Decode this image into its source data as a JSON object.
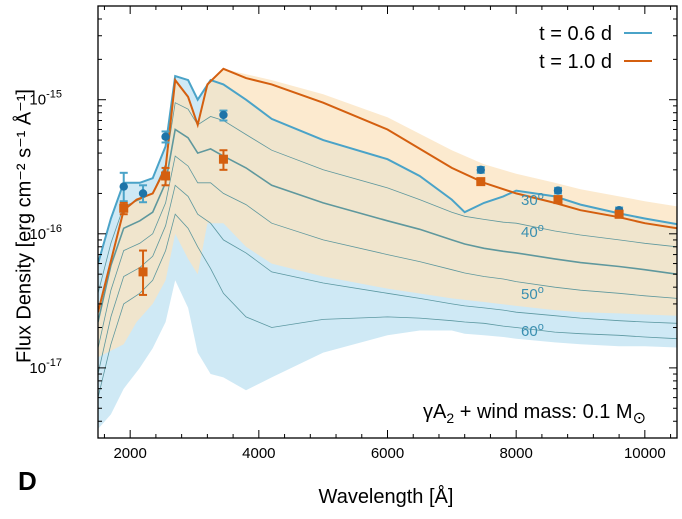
{
  "chart_data": {
    "type": "line",
    "xlabel": "Wavelength [Å]",
    "ylabel": "Flux Density [erg cm⁻² s⁻¹ Å⁻¹]",
    "xlim": [
      1500,
      10500
    ],
    "ylim": [
      3e-18,
      5e-15
    ],
    "yscale": "log",
    "xticks": [
      2000,
      4000,
      6000,
      8000,
      10000
    ],
    "yticks": [
      {
        "value": 1e-17,
        "mant": "10",
        "exp": "-17"
      },
      {
        "value": 1e-16,
        "mant": "10",
        "exp": "-16"
      },
      {
        "value": 1e-15,
        "mant": "10",
        "exp": "-15"
      }
    ],
    "panel_label": "D",
    "annotation": {
      "prefix": "γA",
      "sub": "2",
      "middle": " + wind mass: 0.1 M",
      "symbol": "⊙"
    },
    "angle_labels": [
      {
        "text": "30",
        "x": 8000,
        "y": 1.7e-16
      },
      {
        "text": "40",
        "x": 8000,
        "y": 1.1e-16
      },
      {
        "text": "50",
        "x": 8000,
        "y": 4.2e-17
      },
      {
        "text": "60",
        "x": 8000,
        "y": 2.2e-17
      }
    ],
    "series": [
      {
        "name": "t = 0.6 d",
        "color": "#4aa3c8",
        "light_color": "#cfe9f5",
        "x": [
          1500,
          1700,
          1900,
          2150,
          2350,
          2550,
          2700,
          2900,
          3050,
          3250,
          3450,
          3800,
          4200,
          5000,
          6000,
          6500,
          7000,
          7200,
          7500,
          7800,
          8000,
          8600,
          9000,
          9600,
          10000,
          10500
        ],
        "y": [
          6e-17,
          1.3e-16,
          2.4e-16,
          2.4e-16,
          2.6e-16,
          4.5e-16,
          1.5e-15,
          1.4e-15,
          1e-15,
          1.4e-15,
          1.3e-15,
          1e-15,
          7.2e-16,
          5e-16,
          3.6e-16,
          2.7e-16,
          1.8e-16,
          1.45e-16,
          1.7e-16,
          1.9e-16,
          2.1e-16,
          1.9e-16,
          1.65e-16,
          1.42e-16,
          1.3e-16,
          1.18e-16
        ],
        "band_upper": [
          6e-17,
          1.3e-16,
          2.4e-16,
          2.4e-16,
          2.6e-16,
          4.5e-16,
          1.5e-15,
          1.4e-15,
          1e-15,
          1.4e-15,
          1.3e-15,
          1e-15,
          7.2e-16,
          5e-16,
          3.6e-16,
          2.7e-16,
          1.8e-16,
          1.45e-16,
          1.7e-16,
          1.9e-16,
          2.1e-16,
          1.9e-16,
          1.65e-16,
          1.42e-16,
          1.3e-16,
          1.18e-16
        ],
        "band_lower": [
          3.5e-18,
          4.5e-18,
          7e-18,
          1e-17,
          1.4e-17,
          2.2e-17,
          4.5e-17,
          2.8e-17,
          1.3e-17,
          9e-18,
          8.5e-18,
          6.8e-18,
          8.5e-18,
          1.3e-17,
          1.75e-17,
          1.9e-17,
          1.9e-17,
          1.8e-17,
          1.75e-17,
          1.7e-17,
          1.65e-17,
          1.55e-17,
          1.5e-17,
          1.45e-17,
          1.45e-17,
          1.42e-17
        ],
        "contours": [
          [
            3.6e-17,
            8.5e-17,
            1.6e-16,
            1.8e-16,
            2e-16,
            3.3e-16,
            9.5e-16,
            8.5e-16,
            6.5e-16,
            7.5e-16,
            7e-16,
            5.5e-16,
            4.2e-16,
            3e-16,
            2.2e-16,
            1.8e-16,
            1.45e-16,
            1.35e-16,
            1.28e-16,
            1.22e-16,
            1.2e-16,
            1.05e-16,
            9.8e-17,
            9e-17,
            8.5e-17,
            8e-17
          ],
          [
            2.2e-17,
            5.8e-17,
            1.1e-16,
            1.25e-16,
            1.45e-16,
            2.4e-16,
            6e-16,
            5.2e-16,
            4e-16,
            4.3e-16,
            3.8e-16,
            3.1e-16,
            2.3e-16,
            1.7e-16,
            1.25e-16,
            1.08e-16,
            9e-17,
            8.4e-17,
            7.8e-17,
            7.4e-17,
            7.2e-17,
            6.5e-17,
            6.1e-17,
            5.7e-17,
            5.4e-17,
            5e-17
          ],
          [
            1.4e-17,
            3.8e-17,
            7.5e-17,
            8.5e-17,
            1e-16,
            1.7e-16,
            3.8e-16,
            3.2e-16,
            2.4e-16,
            2.4e-16,
            2e-16,
            1.65e-16,
            1.2e-16,
            9e-17,
            7e-17,
            6.2e-17,
            5.4e-17,
            5.1e-17,
            4.8e-17,
            4.6e-17,
            4.4e-17,
            4e-17,
            3.8e-17,
            3.6e-17,
            3.45e-17,
            3.3e-17
          ],
          [
            9e-18,
            2.4e-17,
            4.8e-17,
            5.6e-17,
            6.8e-17,
            1.15e-16,
            2.3e-16,
            1.9e-16,
            1.4e-16,
            1.2e-16,
            9e-17,
            7.2e-17,
            5.2e-17,
            4.3e-17,
            3.6e-17,
            3.3e-17,
            3e-17,
            2.9e-17,
            2.8e-17,
            2.7e-17,
            2.6e-17,
            2.45e-17,
            2.35e-17,
            2.25e-17,
            2.2e-17,
            2.15e-17
          ],
          [
            6e-18,
            1.5e-17,
            3e-17,
            3.6e-17,
            4.5e-17,
            7.5e-17,
            1.4e-16,
            1.1e-16,
            8e-17,
            5.5e-17,
            3.6e-17,
            2.4e-17,
            2e-17,
            2.3e-17,
            2.4e-17,
            2.35e-17,
            2.25e-17,
            2.2e-17,
            2.15e-17,
            2.05e-17,
            2e-17,
            1.85e-17,
            1.8e-17,
            1.75e-17,
            1.7e-17,
            1.65e-17
          ]
        ],
        "points": [
          {
            "x": 1900,
            "y": 2.25e-16,
            "lo": 1.75e-16,
            "hi": 2.85e-16
          },
          {
            "x": 2200,
            "y": 2e-16,
            "lo": 1.72e-16,
            "hi": 2.3e-16
          },
          {
            "x": 2550,
            "y": 5.3e-16,
            "lo": 4.8e-16,
            "hi": 5.8e-16
          },
          {
            "x": 3450,
            "y": 7.7e-16,
            "lo": 7e-16,
            "hi": 8.3e-16
          },
          {
            "x": 7450,
            "y": 3e-16,
            "lo": 2.85e-16,
            "hi": 3.15e-16
          },
          {
            "x": 8650,
            "y": 2.1e-16,
            "lo": 2e-16,
            "hi": 2.2e-16
          },
          {
            "x": 9600,
            "y": 1.5e-16,
            "lo": 1.43e-16,
            "hi": 1.57e-16
          }
        ]
      },
      {
        "name": "t = 1.0 d",
        "color": "#d45f0f",
        "light_color": "#fbe3bf",
        "x": [
          1500,
          1900,
          2100,
          2350,
          2550,
          2700,
          2900,
          3050,
          3200,
          3450,
          3800,
          4200,
          5000,
          6000,
          7000,
          7500,
          8000,
          8600,
          9000,
          9600,
          10000,
          10500
        ],
        "y": [
          2.6e-17,
          1.5e-16,
          1.8e-16,
          2e-16,
          3.1e-16,
          1.4e-15,
          1.05e-15,
          6.5e-16,
          1.3e-15,
          1.7e-15,
          1.45e-15,
          1.3e-15,
          9.5e-16,
          6e-16,
          3.1e-16,
          2.4e-16,
          2e-16,
          1.7e-16,
          1.5e-16,
          1.33e-16,
          1.2e-16,
          1.1e-16
        ],
        "band_upper": [
          2.6e-17,
          1.5e-16,
          1.8e-16,
          2e-16,
          3.1e-16,
          1.4e-15,
          1.05e-15,
          6.5e-16,
          1.3e-15,
          1.7e-15,
          1.55e-15,
          1.4e-15,
          1.1e-15,
          7.4e-16,
          4.2e-16,
          3.3e-16,
          2.8e-16,
          2.4e-16,
          2.15e-16,
          1.9e-16,
          1.75e-16,
          1.6e-16
        ],
        "band_lower": [
          1.2e-17,
          1.5e-17,
          2.2e-17,
          3e-17,
          4.5e-17,
          1e-16,
          6.5e-17,
          5e-17,
          1.2e-16,
          1.2e-16,
          8e-17,
          6e-17,
          4.8e-17,
          3.9e-17,
          3.3e-17,
          3.1e-17,
          2.9e-17,
          2.7e-17,
          2.6e-17,
          2.55e-17,
          2.5e-17,
          2.45e-17
        ],
        "points": [
          {
            "x": 1900,
            "y": 1.55e-16,
            "lo": 1.4e-16,
            "hi": 1.7e-16
          },
          {
            "x": 2200,
            "y": 5.2e-17,
            "lo": 3.5e-17,
            "hi": 7.5e-17
          },
          {
            "x": 2550,
            "y": 2.7e-16,
            "lo": 2.3e-16,
            "hi": 3.1e-16
          },
          {
            "x": 3450,
            "y": 3.6e-16,
            "lo": 3e-16,
            "hi": 4.2e-16
          },
          {
            "x": 7450,
            "y": 2.45e-16,
            "lo": 2.33e-16,
            "hi": 2.57e-16
          },
          {
            "x": 8650,
            "y": 1.8e-16,
            "lo": 1.7e-16,
            "hi": 1.9e-16
          },
          {
            "x": 9600,
            "y": 1.4e-16,
            "lo": 1.32e-16,
            "hi": 1.48e-16
          }
        ]
      }
    ]
  }
}
